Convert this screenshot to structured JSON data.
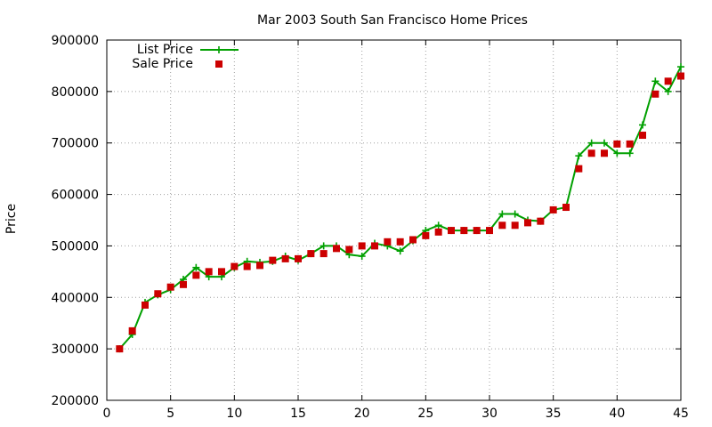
{
  "chart_data": {
    "type": "line",
    "title": "Mar 2003 South San Francisco Home Prices",
    "xlabel": "",
    "ylabel": "Price",
    "xlim": [
      0,
      45
    ],
    "ylim": [
      200000,
      900000
    ],
    "xticks": [
      0,
      5,
      10,
      15,
      20,
      25,
      30,
      35,
      40,
      45
    ],
    "yticks": [
      200000,
      300000,
      400000,
      500000,
      600000,
      700000,
      800000,
      900000
    ],
    "xtick_labels": [
      "0",
      "5",
      "10",
      "15",
      "20",
      "25",
      "30",
      "35",
      "40",
      "45"
    ],
    "ytick_labels": [
      "200000",
      "300000",
      "400000",
      "500000",
      "600000",
      "700000",
      "800000",
      "900000"
    ],
    "grid": true,
    "legend_position": "top-left",
    "series": [
      {
        "name": "List Price",
        "style": "linespoints",
        "color": "#00a000",
        "x": [
          1,
          2,
          3,
          4,
          5,
          6,
          7,
          8,
          9,
          10,
          11,
          12,
          13,
          14,
          15,
          16,
          17,
          18,
          19,
          20,
          21,
          22,
          23,
          24,
          25,
          26,
          27,
          28,
          29,
          30,
          31,
          32,
          33,
          34,
          35,
          36,
          37,
          38,
          39,
          40,
          41,
          42,
          43,
          44,
          45
        ],
        "y": [
          300000,
          328000,
          390000,
          405000,
          415000,
          435000,
          458000,
          440000,
          440000,
          458000,
          470000,
          468000,
          470000,
          480000,
          472000,
          485000,
          500000,
          500000,
          483000,
          480000,
          505000,
          500000,
          490000,
          510000,
          530000,
          540000,
          530000,
          530000,
          530000,
          530000,
          562000,
          562000,
          550000,
          548000,
          570000,
          575000,
          675000,
          700000,
          700000,
          680000,
          680000,
          735000,
          820000,
          800000,
          848000
        ]
      },
      {
        "name": "Sale Price",
        "style": "points",
        "color": "#cc0000",
        "x": [
          1,
          2,
          3,
          4,
          5,
          6,
          7,
          8,
          9,
          10,
          11,
          12,
          13,
          14,
          15,
          16,
          17,
          18,
          19,
          20,
          21,
          22,
          23,
          24,
          25,
          26,
          27,
          28,
          29,
          30,
          31,
          32,
          33,
          34,
          35,
          36,
          37,
          38,
          39,
          40,
          41,
          42,
          43,
          44,
          45
        ],
        "y": [
          300000,
          335000,
          385000,
          407000,
          420000,
          425000,
          443000,
          450000,
          450000,
          460000,
          460000,
          462000,
          472000,
          475000,
          475000,
          485000,
          485000,
          495000,
          493000,
          500000,
          500000,
          508000,
          508000,
          512000,
          520000,
          527000,
          530000,
          530000,
          530000,
          530000,
          540000,
          540000,
          545000,
          548000,
          570000,
          575000,
          650000,
          680000,
          680000,
          698000,
          698000,
          715000,
          795000,
          820000,
          830000
        ]
      }
    ]
  }
}
